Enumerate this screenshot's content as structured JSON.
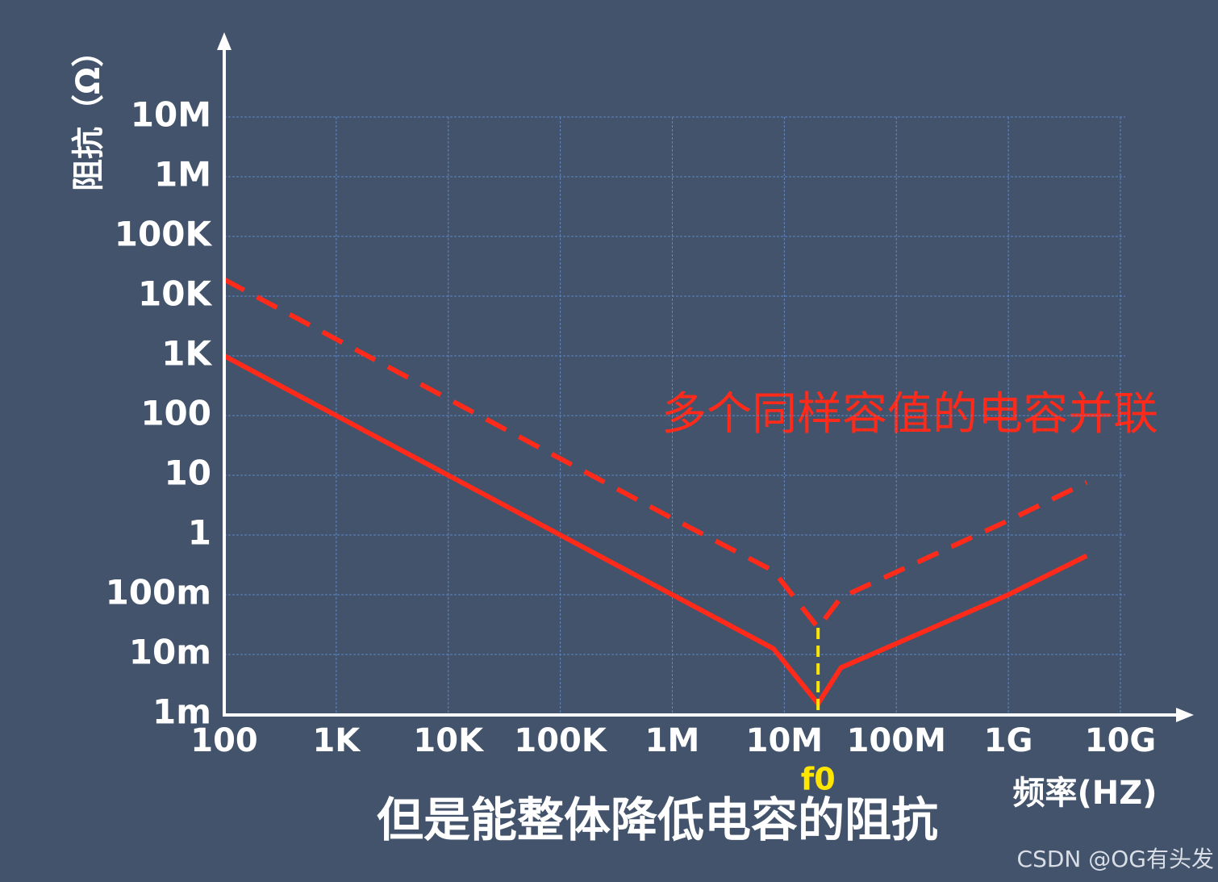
{
  "chart_data": {
    "type": "line",
    "y_label": "阻抗（Ω）",
    "x_label": "频率(HZ)",
    "annotation": "多个同样容值的电容并联",
    "caption": "但是能整体降低电容的阻抗",
    "watermark": "CSDN @OG有头发",
    "log_x": true,
    "log_y": true,
    "grid": true,
    "x": [
      100,
      1000,
      10000,
      100000,
      1000000,
      8000000,
      20000000,
      32000000,
      1000000000,
      5000000000
    ],
    "series": [
      {
        "color": "#ff2a1a",
        "dashed": false,
        "values": [
          1000,
          100,
          10,
          1,
          0.1,
          0.0125,
          0.0015,
          0.006,
          0.1,
          0.45
        ]
      },
      {
        "color": "#ff2a1a",
        "dashed": true,
        "values": [
          19000,
          1900,
          190,
          19,
          1.9,
          0.25,
          0.028,
          0.09,
          1.75,
          7.6
        ]
      }
    ],
    "markers": [
      {
        "x": 20000000,
        "label": "f0",
        "color": "#ffe600"
      }
    ],
    "xlim": [
      100,
      10000000000
    ],
    "ylim": [
      0.001,
      100000000
    ],
    "xticks": [
      100,
      {
        "value": 1000,
        "label": "1K"
      },
      {
        "value": 10000,
        "label": "10K"
      },
      {
        "value": 100000,
        "label": "100K"
      },
      {
        "value": 1000000,
        "label": "1M"
      },
      {
        "value": 10000000,
        "label": "10M"
      },
      {
        "value": 100000000,
        "label": "100M"
      },
      {
        "value": 1000000000,
        "label": "1G"
      },
      {
        "value": 10000000000,
        "label": "10G"
      }
    ],
    "yticks": [
      {
        "value": 0.001,
        "label": "1m"
      },
      {
        "value": 0.01,
        "label": "10m"
      },
      {
        "value": 0.1,
        "label": "100m"
      },
      1,
      10,
      100,
      {
        "value": 1000,
        "label": "1K"
      },
      {
        "value": 10000,
        "label": "10K"
      },
      {
        "value": 100000,
        "label": "100K"
      },
      {
        "value": 1000000,
        "label": "1M"
      },
      {
        "value": 10000000,
        "label": "10M"
      }
    ]
  }
}
